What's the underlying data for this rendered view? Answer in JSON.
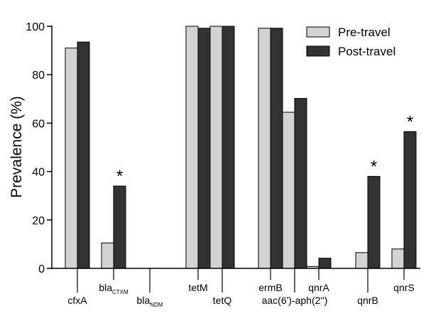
{
  "chart_data": {
    "type": "bar",
    "title": "",
    "xlabel": "",
    "ylabel": "Prevalence (%)",
    "ylim": [
      0,
      100
    ],
    "yticks": [
      "0",
      "20",
      "40",
      "60",
      "80",
      "100"
    ],
    "grid": false,
    "legend_position": "top-right",
    "categories": [
      {
        "main": "cfxA",
        "sub": ""
      },
      {
        "main": "bla",
        "sub": "CTXM"
      },
      {
        "main": "bla",
        "sub": "NDM"
      },
      {
        "main": "tetM",
        "sub": ""
      },
      {
        "main": "tetQ",
        "sub": ""
      },
      {
        "main": "ermB",
        "sub": ""
      },
      {
        "main": "aac(6')-aph(2'')",
        "sub": ""
      },
      {
        "main": "qnrA",
        "sub": ""
      },
      {
        "main": "qnrB",
        "sub": ""
      },
      {
        "main": "qnrS",
        "sub": ""
      }
    ],
    "series": [
      {
        "name": "Pre-travel",
        "color": "#d3d3d3",
        "values": [
          91,
          10.5,
          0,
          100,
          100,
          99.2,
          64.5,
          0.8,
          6.5,
          8
        ]
      },
      {
        "name": "Post-travel",
        "color": "#333333",
        "values": [
          93.5,
          34,
          0,
          99.2,
          100,
          99.2,
          70.2,
          4.2,
          38,
          56.5
        ]
      }
    ],
    "significance_marker": "*",
    "significant_categories": [
      "bla CTXM",
      "qnrB",
      "qnrS"
    ]
  }
}
